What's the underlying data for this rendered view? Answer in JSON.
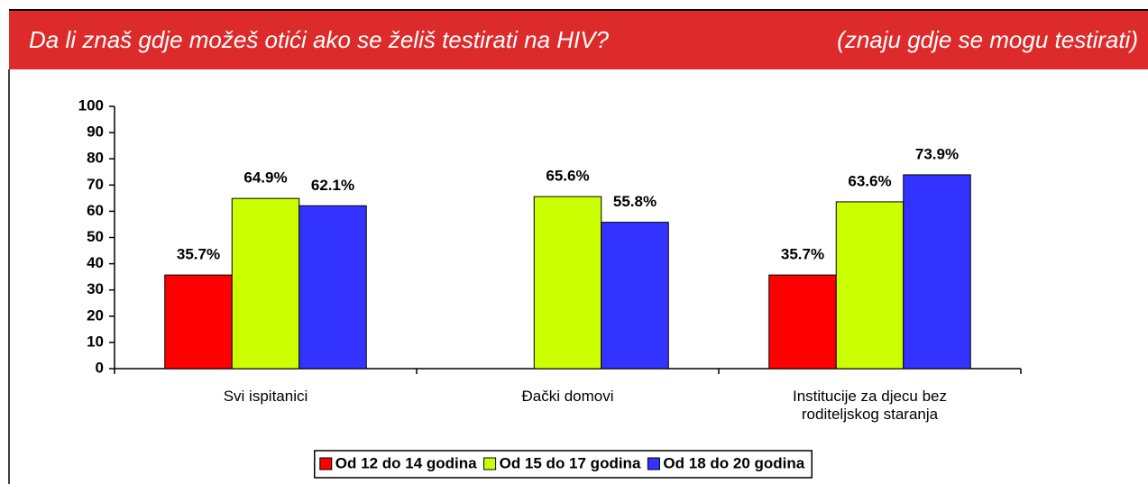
{
  "chart_data": {
    "type": "bar",
    "title": "Da li znaš gdje možeš otići ako se želiš testirati na HIV?",
    "subtitle": "(znaju gdje se mogu testirati)",
    "categories": [
      "Svi ispitanici",
      "Đački domovi",
      "Institucije za djecu bez roditeljskog staranja"
    ],
    "series": [
      {
        "name": "Od 12 do 14 godina",
        "color": "#ff0000",
        "values": [
          35.7,
          null,
          35.7
        ],
        "value_labels": [
          "35.7%",
          null,
          "35.7%"
        ]
      },
      {
        "name": "Od 15 do 17 godina",
        "color": "#ccff00",
        "values": [
          64.9,
          65.6,
          63.6
        ],
        "value_labels": [
          "64.9%",
          "65.6%",
          "63.6%"
        ]
      },
      {
        "name": "Od 18 do 20 godina",
        "color": "#3333ff",
        "values": [
          62.1,
          55.8,
          73.9
        ],
        "value_labels": [
          "62.1%",
          "55.8%",
          "73.9%"
        ]
      }
    ],
    "ylim": [
      0,
      100
    ],
    "yticks": [
      0,
      10,
      20,
      30,
      40,
      50,
      60,
      70,
      80,
      90,
      100
    ],
    "legend": "bottom"
  }
}
